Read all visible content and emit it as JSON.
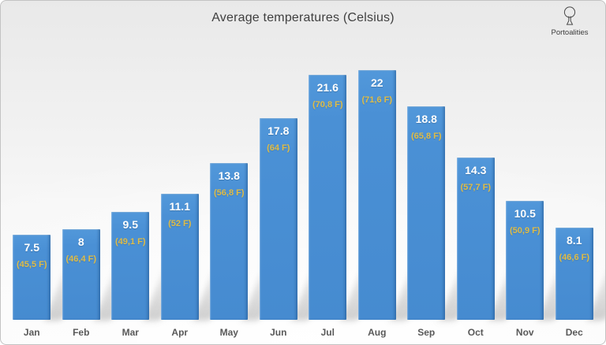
{
  "title": "Average temperatures (Celsius)",
  "logo": {
    "text": "Portoalities",
    "icon": "port-wine-glass-icon"
  },
  "colors": {
    "bar": "#4a90d5",
    "celsius_label": "#ffffff",
    "fahrenheit_label": "#dfbc47",
    "month_label": "#595959",
    "title": "#3f3f3f",
    "background_top": "#e9e9e9",
    "background_bottom": "#fbfbfb"
  },
  "chart_data": {
    "type": "bar",
    "title": "Average temperatures (Celsius)",
    "categories": [
      "Jan",
      "Feb",
      "Mar",
      "Apr",
      "May",
      "Jun",
      "Jul",
      "Aug",
      "Sep",
      "Oct",
      "Nov",
      "Dec"
    ],
    "values": [
      7.5,
      8,
      9.5,
      11.1,
      13.8,
      17.8,
      21.6,
      22,
      18.8,
      14.3,
      10.5,
      8.1
    ],
    "fahrenheit_values": [
      45.5,
      46.4,
      49.1,
      52,
      56.8,
      64,
      70.8,
      71.6,
      65.8,
      57.7,
      50.9,
      46.6
    ],
    "ylim": [
      0,
      24
    ],
    "grid": false,
    "legend": "none",
    "xlabel": "",
    "ylabel": "",
    "points": [
      {
        "month": "Jan",
        "celsius": "7.5",
        "fahrenheit": "(45,5 F)"
      },
      {
        "month": "Feb",
        "celsius": "8",
        "fahrenheit": "(46,4 F)"
      },
      {
        "month": "Mar",
        "celsius": "9.5",
        "fahrenheit": "(49,1 F)"
      },
      {
        "month": "Apr",
        "celsius": "11.1",
        "fahrenheit": "(52 F)"
      },
      {
        "month": "May",
        "celsius": "13.8",
        "fahrenheit": "(56,8 F)"
      },
      {
        "month": "Jun",
        "celsius": "17.8",
        "fahrenheit": "(64 F)"
      },
      {
        "month": "Jul",
        "celsius": "21.6",
        "fahrenheit": "(70,8 F)"
      },
      {
        "month": "Aug",
        "celsius": "22",
        "fahrenheit": "(71,6 F)"
      },
      {
        "month": "Sep",
        "celsius": "18.8",
        "fahrenheit": "(65,8 F)"
      },
      {
        "month": "Oct",
        "celsius": "14.3",
        "fahrenheit": "(57,7 F)"
      },
      {
        "month": "Nov",
        "celsius": "10.5",
        "fahrenheit": "(50,9 F)"
      },
      {
        "month": "Dec",
        "celsius": "8.1",
        "fahrenheit": "(46,6 F)"
      }
    ]
  }
}
